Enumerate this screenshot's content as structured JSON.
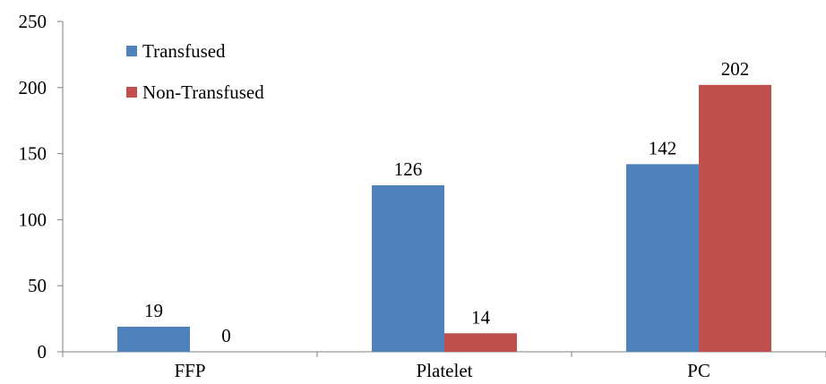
{
  "chart_data": {
    "type": "bar",
    "categories": [
      "FFP",
      "Platelet",
      "PC"
    ],
    "series": [
      {
        "name": "Transfused",
        "values": [
          19,
          126,
          142
        ],
        "color": "#4f81bd"
      },
      {
        "name": "Non-Transfused",
        "values": [
          0,
          14,
          202
        ],
        "color": "#c0504d"
      }
    ],
    "ylim": [
      0,
      250
    ],
    "yticks": [
      0,
      50,
      100,
      150,
      200,
      250
    ],
    "ytick_labels": [
      "0",
      "50",
      "100",
      "150",
      "200",
      "250"
    ],
    "data_labels": [
      [
        "19",
        "126",
        "142"
      ],
      [
        "0",
        "14",
        "202"
      ]
    ],
    "title": "",
    "xlabel": "",
    "ylabel": "",
    "legend_position": "top-left",
    "grid": false
  }
}
